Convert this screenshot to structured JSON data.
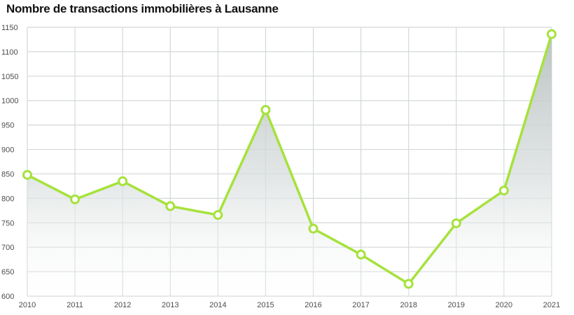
{
  "chart_data": {
    "type": "area",
    "title": "Nombre de transactions immobilières à Lausanne",
    "xlabel": "",
    "ylabel": "",
    "categories": [
      "2010",
      "2011",
      "2012",
      "2013",
      "2014",
      "2015",
      "2016",
      "2017",
      "2018",
      "2019",
      "2020",
      "2021"
    ],
    "values": [
      848,
      798,
      835,
      784,
      766,
      981,
      738,
      685,
      625,
      749,
      816,
      1136
    ],
    "ylim": [
      600,
      1150
    ],
    "yticks": [
      "600",
      "650",
      "700",
      "750",
      "800",
      "850",
      "900",
      "950",
      "1000",
      "1050",
      "1100",
      "1150"
    ],
    "grid": true,
    "legend": "none",
    "colors": {
      "line": "#a6e23c",
      "marker_stroke": "#a6e23c",
      "marker_fill": "#ffffff",
      "grid": "#d4d8d8",
      "area": "#c5cbcb"
    }
  }
}
